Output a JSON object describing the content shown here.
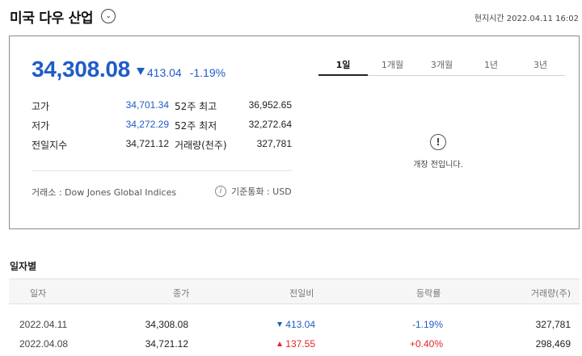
{
  "header": {
    "title": "미국 다우 산업",
    "local_time": "현지시간 2022.04.11 16:02"
  },
  "quote": {
    "price": "34,308.08",
    "change": "413.04",
    "change_pct": "-1.19%",
    "direction": "down",
    "stats": [
      {
        "label": "고가",
        "value": "34,701.34",
        "label2": "52주 최고",
        "value2": "36,952.65"
      },
      {
        "label": "저가",
        "value": "34,272.29",
        "label2": "52주 최저",
        "value2": "32,272.64"
      },
      {
        "label": "전일지수",
        "value": "34,721.12",
        "label2": "거래량(천주)",
        "value2": "327,781"
      }
    ],
    "exchange": "거래소 : Dow Jones Global Indices",
    "currency": "기준통화 : USD"
  },
  "chart_tabs": {
    "items": [
      "1일",
      "1개월",
      "3개월",
      "1년",
      "3년"
    ],
    "active_index": 0
  },
  "chart_status": {
    "message": "개장 전입니다."
  },
  "daily": {
    "title": "일자별",
    "columns": [
      "일자",
      "종가",
      "전일비",
      "등락률",
      "거래량(주)"
    ],
    "rows": [
      {
        "date": "2022.04.11",
        "close": "34,308.08",
        "diff": "413.04",
        "rate": "-1.19%",
        "volume": "327,781",
        "direction": "down"
      },
      {
        "date": "2022.04.08",
        "close": "34,721.12",
        "diff": "137.55",
        "rate": "+0.40%",
        "volume": "298,469",
        "direction": "up"
      }
    ]
  },
  "colors": {
    "down": "#1f5cc7",
    "up": "#e0262c"
  },
  "icons": {
    "dropdown": "chevron-down-icon",
    "info": "info-icon",
    "notice": "exclamation-circle-icon"
  }
}
